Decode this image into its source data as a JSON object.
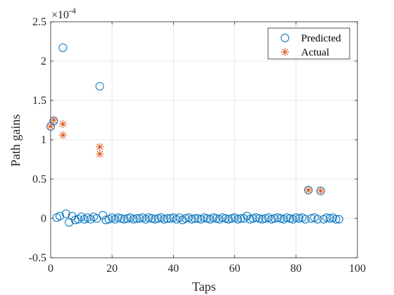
{
  "chart_data": {
    "type": "scatter",
    "xlabel": "Taps",
    "ylabel": "Path gains",
    "exponent_label": "×10",
    "exponent_power": "-4",
    "xlim": [
      0,
      100
    ],
    "ylim": [
      -0.5,
      2.5
    ],
    "xticks": [
      "0",
      "20",
      "40",
      "60",
      "80",
      "100"
    ],
    "yticks": [
      "-0.5",
      "0",
      "0.5",
      "1",
      "1.5",
      "2",
      "2.5"
    ],
    "grid": true,
    "legend_position": "top-right",
    "legend": [
      "Predicted",
      "Actual"
    ],
    "colors": {
      "predicted": "#0072BD",
      "actual": "#D95319",
      "grid": "#dfdfdf",
      "axis": "#262626"
    },
    "series": [
      {
        "name": "Predicted",
        "marker": "circle",
        "x": [
          0,
          1,
          2,
          3,
          4,
          5,
          6,
          7,
          8,
          9,
          10,
          11,
          12,
          13,
          14,
          15,
          16,
          17,
          18,
          19,
          20,
          21,
          22,
          23,
          24,
          25,
          26,
          27,
          28,
          29,
          30,
          31,
          32,
          33,
          34,
          35,
          36,
          37,
          38,
          39,
          40,
          41,
          42,
          43,
          44,
          45,
          46,
          47,
          48,
          49,
          50,
          51,
          52,
          53,
          54,
          55,
          56,
          57,
          58,
          59,
          60,
          61,
          62,
          63,
          64,
          65,
          66,
          67,
          68,
          69,
          70,
          71,
          72,
          73,
          74,
          75,
          76,
          77,
          78,
          79,
          80,
          81,
          82,
          83,
          84,
          85,
          86,
          87,
          88,
          89,
          90,
          91,
          92,
          93,
          94
        ],
        "y": [
          1.17,
          1.24,
          0.01,
          0.03,
          2.17,
          0.06,
          -0.05,
          0.03,
          -0.02,
          -0.01,
          0.02,
          -0.01,
          0.01,
          -0.01,
          0.02,
          0,
          1.68,
          0.04,
          -0.02,
          -0.01,
          0.01,
          -0.01,
          0.01,
          0,
          -0.01,
          0,
          0.01,
          -0.01,
          0,
          0,
          0.01,
          -0.01,
          0.01,
          0,
          -0.01,
          0,
          0.01,
          -0.01,
          0,
          0,
          0.01,
          -0.01,
          0.01,
          -0.02,
          0,
          0.01,
          -0.01,
          0,
          0,
          -0.01,
          0.01,
          0,
          -0.01,
          0.01,
          0,
          -0.01,
          0.01,
          0,
          -0.01,
          0,
          0.01,
          -0.01,
          0,
          0,
          0.03,
          -0.01,
          0,
          0.01,
          0,
          -0.01,
          0,
          0.01,
          -0.01,
          0,
          0.01,
          0,
          -0.01,
          0.01,
          0,
          -0.01,
          0.01,
          0,
          0.01,
          -0.01,
          0.36,
          0,
          0.01,
          -0.01,
          0.35,
          -0.01,
          0.01,
          0,
          0.01,
          -0.01,
          -0.01
        ]
      },
      {
        "name": "Actual",
        "marker": "asterisk",
        "x": [
          0,
          1,
          4,
          4,
          16,
          16,
          84,
          88
        ],
        "y": [
          1.17,
          1.25,
          1.2,
          1.06,
          0.91,
          0.82,
          0.36,
          0.35
        ]
      }
    ]
  }
}
